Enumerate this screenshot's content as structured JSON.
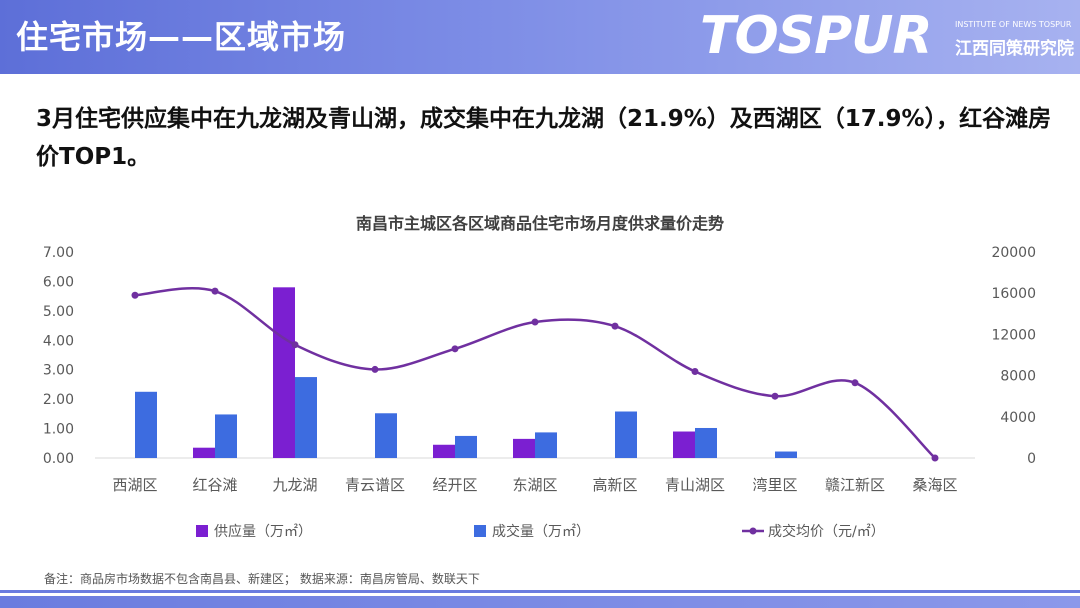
{
  "header": {
    "title": "住宅市场——区域市场",
    "logo_text": "TOSPUR",
    "logo_en": "INSTITUTE OF NEWS TOSPUR",
    "logo_cn": "江西同策研究院"
  },
  "headline": "3月住宅供应集中在九龙湖及青山湖，成交集中在九龙湖（21.9%）及西湖区（17.9%），红谷滩房价TOP1。",
  "footnote": "备注：商品房市场数据不包含南昌县、新建区；  数据来源：南昌房管局、数联天下",
  "colors": {
    "header": "#6a7cdf",
    "supply": "#7b1fd1",
    "deal": "#3d6ce0",
    "price": "#7030a0"
  },
  "chart_data": {
    "type": "bar",
    "title": "南昌市主城区各区域商品住宅市场月度供求量价走势",
    "categories": [
      "西湖区",
      "红谷滩",
      "九龙湖",
      "青云谱区",
      "经开区",
      "东湖区",
      "高新区",
      "青山湖区",
      "湾里区",
      "赣江新区",
      "桑海区"
    ],
    "series": [
      {
        "name": "供应量（万㎡）",
        "kind": "bar",
        "axis": "left",
        "values": [
          0,
          0.35,
          5.8,
          0,
          0.45,
          0.65,
          0,
          0.9,
          0,
          0,
          0
        ]
      },
      {
        "name": "成交量（万㎡）",
        "kind": "bar",
        "axis": "left",
        "values": [
          2.25,
          1.48,
          2.75,
          1.52,
          0.75,
          0.87,
          1.58,
          1.02,
          0.22,
          0,
          0
        ]
      },
      {
        "name": "成交均价（元/㎡）",
        "kind": "line",
        "axis": "right",
        "values": [
          15800,
          16200,
          11000,
          8600,
          10600,
          13200,
          12800,
          8400,
          6000,
          7300,
          0
        ]
      }
    ],
    "y_left": {
      "min": 0,
      "max": 7,
      "step": 1,
      "ticks": [
        "0.00",
        "1.00",
        "2.00",
        "3.00",
        "4.00",
        "5.00",
        "6.00",
        "7.00"
      ]
    },
    "y_right": {
      "min": 0,
      "max": 20000,
      "step": 4000,
      "ticks": [
        "0",
        "4000",
        "8000",
        "12000",
        "16000",
        "20000"
      ]
    },
    "grid": false,
    "legend": "bottom"
  }
}
